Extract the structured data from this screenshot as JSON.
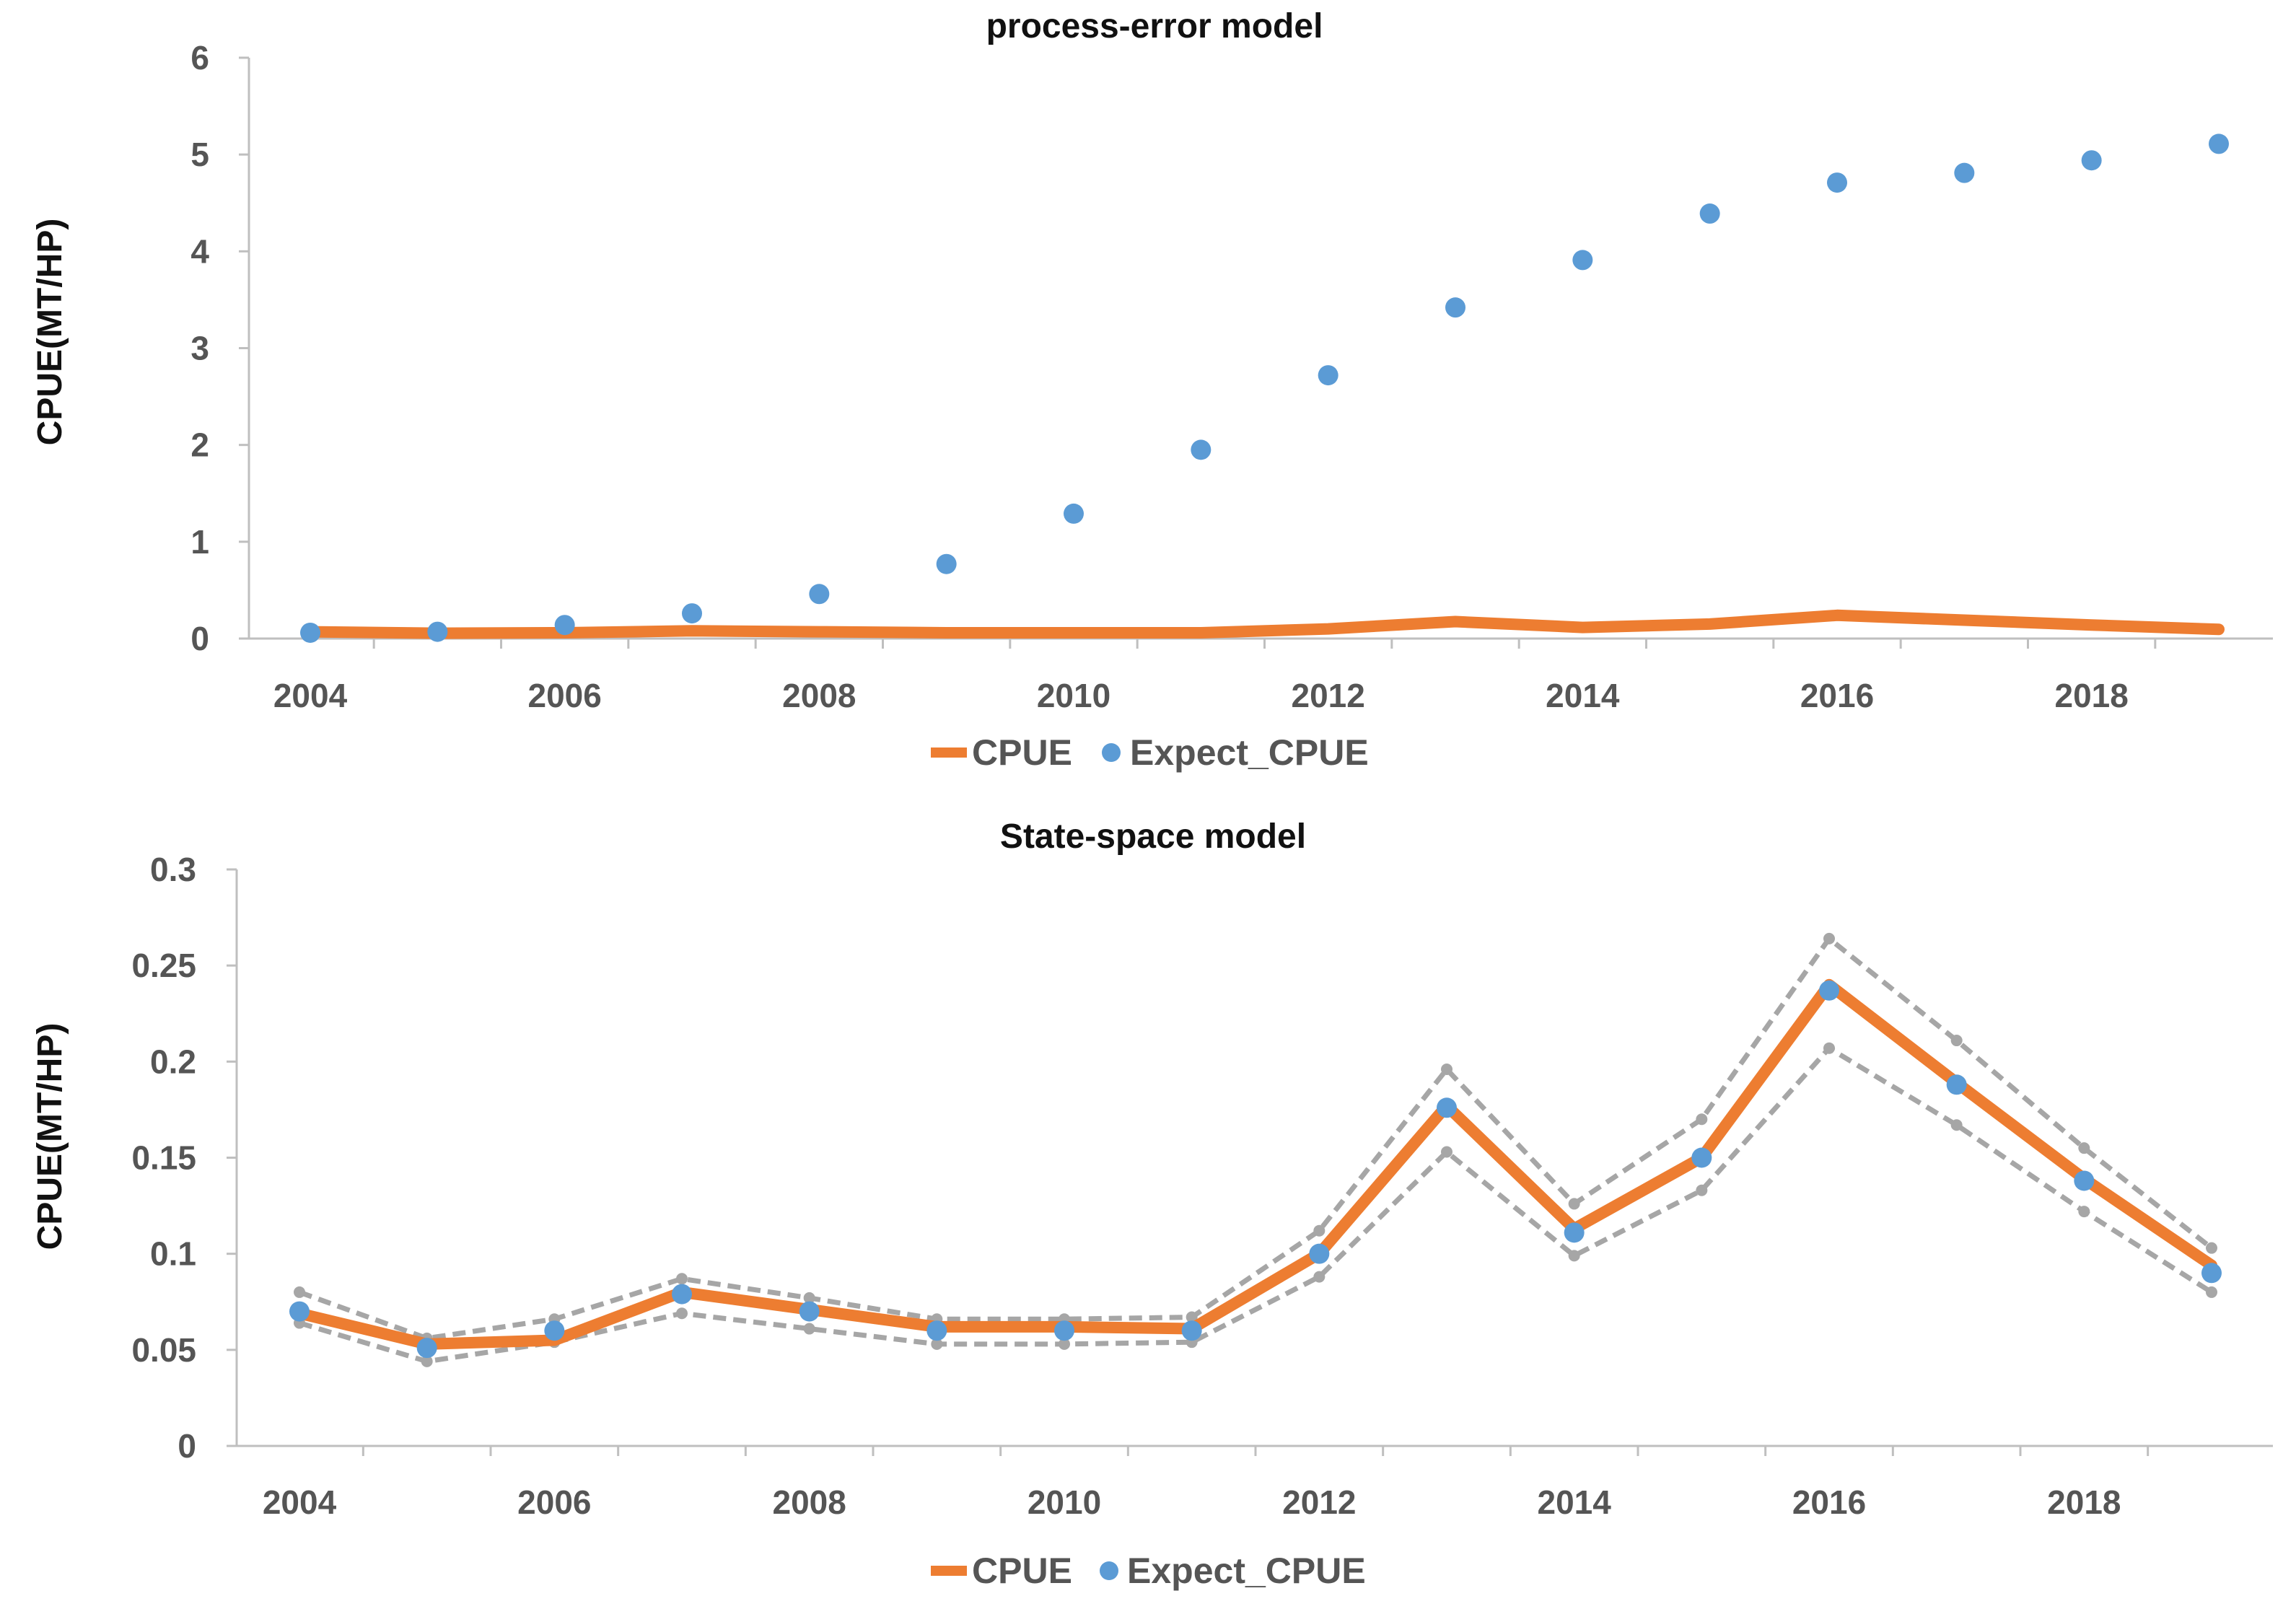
{
  "chart_data": [
    {
      "type": "line",
      "title": "process-error model",
      "ylabel": "CPUE(MT/HP)",
      "xlabel": "",
      "ylim": [
        0,
        6
      ],
      "yticks": [
        "0",
        "1",
        "2",
        "3",
        "4",
        "5",
        "6"
      ],
      "xticks": [
        "2004",
        "2006",
        "2008",
        "2010",
        "2012",
        "2014",
        "2016",
        "2018"
      ],
      "x": [
        2004,
        2005,
        2006,
        2007,
        2008,
        2009,
        2010,
        2011,
        2012,
        2013,
        2014,
        2015,
        2016,
        2017,
        2018,
        2019
      ],
      "series": [
        {
          "name": "CPUE",
          "style": "line",
          "color": "#ed7d31",
          "values": [
            0.07,
            0.055,
            0.06,
            0.08,
            0.07,
            0.06,
            0.06,
            0.06,
            0.1,
            0.175,
            0.115,
            0.15,
            0.24,
            0.19,
            0.14,
            0.095
          ]
        },
        {
          "name": "Expect_CPUE",
          "style": "scatter",
          "color": "#5b9bd5",
          "values": [
            0.06,
            0.07,
            0.14,
            0.26,
            0.46,
            0.77,
            1.29,
            1.95,
            2.72,
            3.42,
            3.91,
            4.39,
            4.71,
            4.81,
            4.94,
            5.11
          ]
        }
      ],
      "legend": {
        "position": "bottom",
        "entries": [
          "CPUE",
          "Expect_CPUE"
        ]
      }
    },
    {
      "type": "line",
      "title": "State-space model",
      "ylabel": "CPUE(MT/HP)",
      "xlabel": "",
      "ylim": [
        0,
        0.3
      ],
      "yticks": [
        "0",
        "0.05",
        "0.1",
        "0.15",
        "0.2",
        "0.25",
        "0.3"
      ],
      "xticks": [
        "2004",
        "2006",
        "2008",
        "2010",
        "2012",
        "2014",
        "2016",
        "2018"
      ],
      "x": [
        2004,
        2005,
        2006,
        2007,
        2008,
        2009,
        2010,
        2011,
        2012,
        2013,
        2014,
        2015,
        2016,
        2017,
        2018,
        2019
      ],
      "series": [
        {
          "name": "CPUE",
          "style": "line",
          "color": "#ed7d31",
          "values": [
            0.069,
            0.053,
            0.055,
            0.08,
            0.071,
            0.062,
            0.062,
            0.061,
            0.1,
            0.177,
            0.113,
            0.15,
            0.24,
            0.189,
            0.139,
            0.094
          ]
        },
        {
          "name": "Expect_CPUE",
          "style": "scatter",
          "color": "#5b9bd5",
          "values": [
            0.07,
            0.051,
            0.06,
            0.079,
            0.07,
            0.06,
            0.06,
            0.06,
            0.1,
            0.176,
            0.111,
            0.15,
            0.237,
            0.188,
            0.138,
            0.09
          ]
        },
        {
          "name": "Upper bound",
          "style": "dashed",
          "color": "#a6a6a6",
          "in_legend": false,
          "values": [
            0.08,
            0.056,
            0.066,
            0.087,
            0.077,
            0.066,
            0.066,
            0.067,
            0.112,
            0.196,
            0.126,
            0.17,
            0.264,
            0.211,
            0.155,
            0.103
          ]
        },
        {
          "name": "Lower bound",
          "style": "dashed",
          "color": "#a6a6a6",
          "in_legend": false,
          "values": [
            0.064,
            0.044,
            0.054,
            0.069,
            0.061,
            0.053,
            0.053,
            0.054,
            0.088,
            0.153,
            0.099,
            0.133,
            0.207,
            0.167,
            0.122,
            0.08
          ]
        }
      ],
      "legend": {
        "position": "bottom",
        "entries": [
          "CPUE",
          "Expect_CPUE"
        ]
      }
    }
  ]
}
